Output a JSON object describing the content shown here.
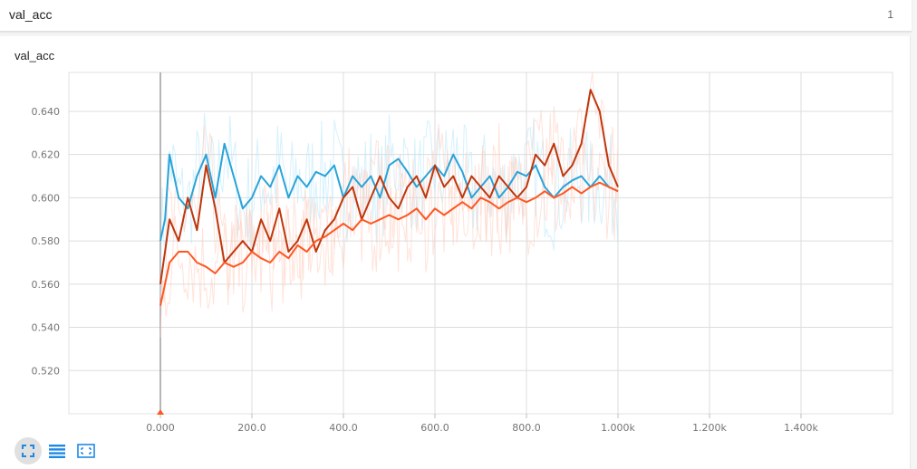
{
  "header": {
    "title": "val_acc",
    "count": "1"
  },
  "card": {
    "title": "val_acc"
  },
  "toolbar": {
    "buttons": [
      {
        "name": "expand-chart-button",
        "icon": "fullscreen-icon"
      },
      {
        "name": "toggle-log-scale-button",
        "icon": "list-icon"
      },
      {
        "name": "fit-domain-button",
        "icon": "fit-domain-icon"
      }
    ]
  },
  "chart_data": {
    "type": "line",
    "title": "",
    "xlabel": "",
    "ylabel": "",
    "xlim": [
      -200,
      1600
    ],
    "ylim": [
      0.5,
      0.658
    ],
    "grid": true,
    "x_ticks": [
      0,
      200,
      400,
      600,
      800,
      1000,
      1200,
      1400
    ],
    "x_tick_labels": [
      "0.000",
      "200.0",
      "400.0",
      "600.0",
      "800.0",
      "1.000k",
      "1.200k",
      "1.400k"
    ],
    "y_ticks": [
      0.52,
      0.54,
      0.56,
      0.58,
      0.6,
      0.62,
      0.64
    ],
    "y_tick_labels": [
      "0.520",
      "0.540",
      "0.560",
      "0.580",
      "0.600",
      "0.620",
      "0.640"
    ],
    "colors": {
      "cyan": "#29a3d9",
      "darkred": "#bf360c",
      "orange": "#ff5722",
      "cyan_raw": "#b3e5fc",
      "orange_raw": "#ffccbc"
    },
    "series": [
      {
        "color": "#29a3d9",
        "x": [
          0,
          10,
          20,
          40,
          60,
          80,
          100,
          120,
          140,
          160,
          180,
          200,
          220,
          240,
          260,
          280,
          300,
          320,
          340,
          360,
          380,
          400,
          420,
          440,
          460,
          480,
          500,
          520,
          540,
          560,
          580,
          600,
          620,
          640,
          660,
          680,
          700,
          720,
          740,
          760,
          780,
          800,
          820,
          840,
          860,
          880,
          900,
          920,
          940,
          960,
          980,
          1000
        ],
        "y": [
          0.58,
          0.59,
          0.62,
          0.6,
          0.595,
          0.61,
          0.62,
          0.6,
          0.625,
          0.61,
          0.595,
          0.6,
          0.61,
          0.605,
          0.615,
          0.6,
          0.61,
          0.605,
          0.612,
          0.61,
          0.615,
          0.6,
          0.61,
          0.605,
          0.61,
          0.6,
          0.615,
          0.618,
          0.612,
          0.605,
          0.61,
          0.615,
          0.61,
          0.62,
          0.612,
          0.6,
          0.605,
          0.61,
          0.6,
          0.605,
          0.612,
          0.61,
          0.615,
          0.605,
          0.6,
          0.605,
          0.608,
          0.61,
          0.605,
          0.61,
          0.605,
          0.603
        ]
      },
      {
        "color": "#bf360c",
        "x": [
          0,
          10,
          20,
          40,
          60,
          80,
          100,
          120,
          140,
          160,
          180,
          200,
          220,
          240,
          260,
          280,
          300,
          320,
          340,
          360,
          380,
          400,
          420,
          440,
          460,
          480,
          500,
          520,
          540,
          560,
          580,
          600,
          620,
          640,
          660,
          680,
          700,
          720,
          740,
          760,
          780,
          800,
          820,
          840,
          860,
          880,
          900,
          920,
          940,
          960,
          980,
          1000
        ],
        "y": [
          0.56,
          0.575,
          0.59,
          0.58,
          0.6,
          0.585,
          0.615,
          0.595,
          0.57,
          0.575,
          0.58,
          0.575,
          0.59,
          0.58,
          0.595,
          0.575,
          0.58,
          0.59,
          0.575,
          0.585,
          0.59,
          0.6,
          0.605,
          0.59,
          0.6,
          0.61,
          0.6,
          0.595,
          0.605,
          0.61,
          0.6,
          0.615,
          0.605,
          0.61,
          0.6,
          0.61,
          0.605,
          0.6,
          0.61,
          0.605,
          0.6,
          0.605,
          0.62,
          0.615,
          0.625,
          0.61,
          0.615,
          0.625,
          0.65,
          0.64,
          0.615,
          0.605
        ]
      },
      {
        "color": "#ff5722",
        "x": [
          0,
          10,
          20,
          40,
          60,
          80,
          100,
          120,
          140,
          160,
          180,
          200,
          220,
          240,
          260,
          280,
          300,
          320,
          340,
          360,
          380,
          400,
          420,
          440,
          460,
          480,
          500,
          520,
          540,
          560,
          580,
          600,
          620,
          640,
          660,
          680,
          700,
          720,
          740,
          760,
          780,
          800,
          820,
          840,
          860,
          880,
          900,
          920,
          940,
          960,
          980,
          1000
        ],
        "y": [
          0.55,
          0.56,
          0.57,
          0.575,
          0.575,
          0.57,
          0.568,
          0.565,
          0.57,
          0.568,
          0.57,
          0.575,
          0.572,
          0.57,
          0.575,
          0.572,
          0.578,
          0.575,
          0.58,
          0.582,
          0.585,
          0.588,
          0.585,
          0.59,
          0.588,
          0.59,
          0.592,
          0.59,
          0.592,
          0.595,
          0.59,
          0.595,
          0.592,
          0.595,
          0.598,
          0.595,
          0.6,
          0.598,
          0.595,
          0.598,
          0.6,
          0.598,
          0.6,
          0.603,
          0.6,
          0.602,
          0.605,
          0.602,
          0.605,
          0.607,
          0.605,
          0.603
        ]
      }
    ]
  }
}
